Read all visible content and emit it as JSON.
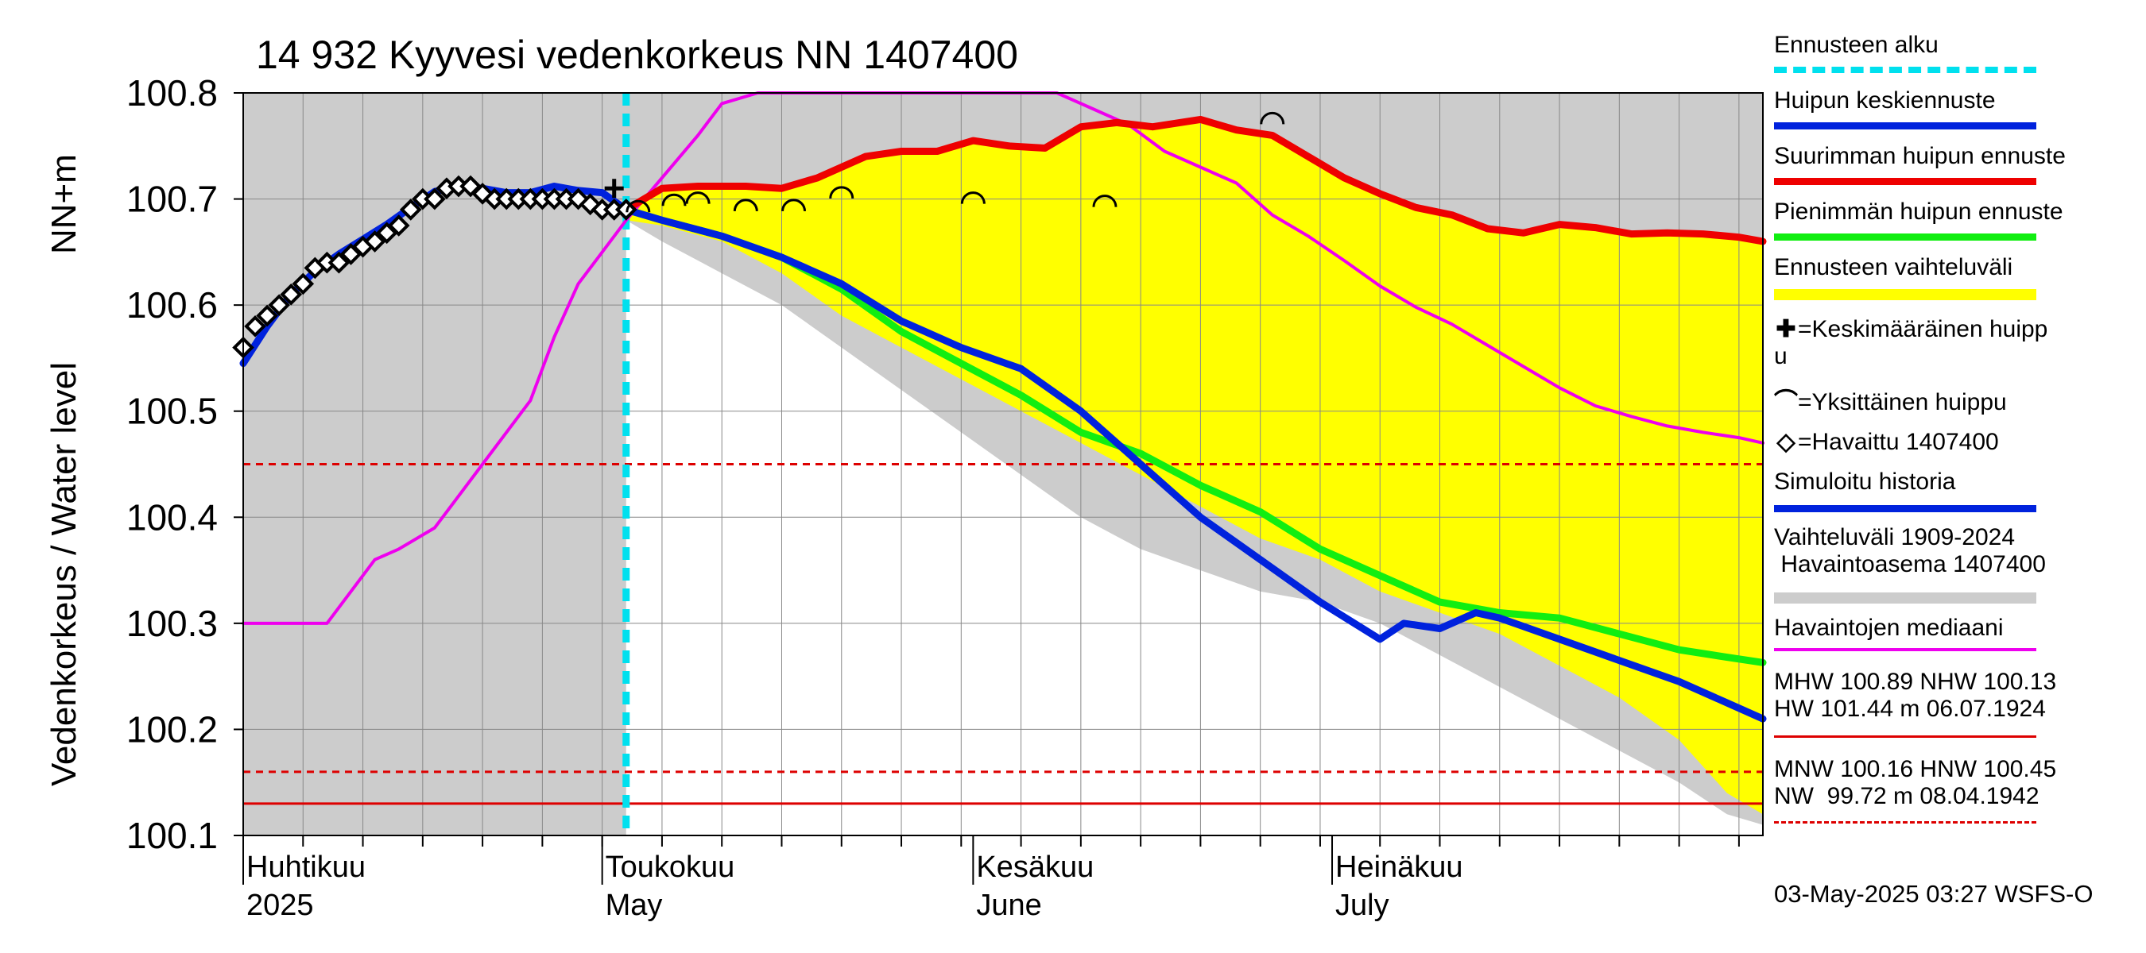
{
  "chart_data": {
    "type": "line",
    "title": "14 932 Kyyvesi vedenkorkeus NN 1407400",
    "ylabel": "Vedenkorkeus / Water level",
    "yunit": "NN+m",
    "ylim": [
      100.1,
      100.8
    ],
    "xlim_days": [
      0,
      127
    ],
    "y_ticks": [
      "100.1",
      "100.2",
      "100.3",
      "100.4",
      "100.5",
      "100.6",
      "100.7",
      "100.8"
    ],
    "x_note": "x values are days since 2025-03-27",
    "month_labels": [
      {
        "fi": "Huhtikuu",
        "en": "2025",
        "day": 0
      },
      {
        "fi": "Toukokuu",
        "en": "May",
        "day": 30
      },
      {
        "fi": "Kesäkuu",
        "en": "June",
        "day": 61
      },
      {
        "fi": "Heinäkuu",
        "en": "July",
        "day": 91
      }
    ],
    "forecast_start_day": 32,
    "reference_lines": [
      {
        "name": "HNW",
        "value": 100.45,
        "style": "dashed",
        "color": "#dd0000"
      },
      {
        "name": "MNW",
        "value": 100.16,
        "style": "dashed",
        "color": "#dd0000"
      },
      {
        "name": "low-solid",
        "value": 100.13,
        "style": "solid",
        "color": "#dd0000"
      }
    ],
    "historical_range_lower": {
      "x": [
        32,
        35,
        40,
        45,
        50,
        55,
        60,
        65,
        70,
        75,
        80,
        85,
        90,
        95,
        100,
        105,
        110,
        115,
        120,
        124,
        127
      ],
      "y": [
        100.68,
        100.66,
        100.63,
        100.6,
        100.56,
        100.52,
        100.48,
        100.44,
        100.4,
        100.37,
        100.35,
        100.33,
        100.32,
        100.3,
        100.27,
        100.24,
        100.21,
        100.18,
        100.15,
        100.12,
        100.11
      ]
    },
    "forecast_range_lower": {
      "x": [
        32,
        35,
        40,
        45,
        50,
        55,
        60,
        65,
        70,
        75,
        80,
        85,
        90,
        95,
        100,
        105,
        110,
        115,
        120,
        124,
        127
      ],
      "y": [
        100.68,
        100.675,
        100.66,
        100.63,
        100.59,
        100.56,
        100.53,
        100.5,
        100.47,
        100.44,
        100.41,
        100.38,
        100.36,
        100.33,
        100.31,
        100.29,
        100.26,
        100.23,
        100.19,
        100.14,
        100.12
      ]
    },
    "series": [
      {
        "name": "Suurimman huipun ennuste",
        "color": "#ee0000",
        "x": [
          32,
          35,
          38,
          42,
          45,
          48,
          52,
          55,
          58,
          61,
          64,
          67,
          70,
          73,
          76,
          80,
          83,
          86,
          89,
          92,
          95,
          98,
          101,
          104,
          107,
          110,
          113,
          116,
          119,
          122,
          125,
          127
        ],
        "y": [
          100.69,
          100.71,
          100.712,
          100.712,
          100.71,
          100.72,
          100.74,
          100.745,
          100.745,
          100.755,
          100.75,
          100.748,
          100.768,
          100.772,
          100.768,
          100.775,
          100.765,
          100.76,
          100.74,
          100.72,
          100.705,
          100.692,
          100.685,
          100.672,
          100.668,
          100.676,
          100.673,
          100.667,
          100.668,
          100.667,
          100.664,
          100.66
        ]
      },
      {
        "name": "Huipun keskiennuste",
        "color": "#0022dd",
        "x": [
          0,
          2,
          4,
          6,
          8,
          10,
          12,
          14,
          16,
          18,
          20,
          22,
          24,
          26,
          28,
          30,
          32,
          35,
          40,
          45,
          50,
          55,
          60,
          65,
          70,
          75,
          80,
          85,
          90,
          95,
          97,
          100,
          103,
          105,
          110,
          115,
          120,
          124,
          127
        ],
        "y": [
          100.545,
          100.58,
          100.61,
          100.632,
          100.648,
          100.662,
          100.676,
          100.692,
          100.707,
          100.712,
          100.71,
          100.706,
          100.706,
          100.712,
          100.708,
          100.706,
          100.69,
          100.68,
          100.665,
          100.645,
          100.62,
          100.585,
          100.56,
          100.54,
          100.5,
          100.45,
          100.4,
          100.36,
          100.32,
          100.285,
          100.3,
          100.295,
          100.31,
          100.305,
          100.285,
          100.265,
          100.245,
          100.225,
          100.21
        ]
      },
      {
        "name": "Pienimmän huipun ennuste",
        "color": "#11ee11",
        "x": [
          32,
          35,
          40,
          45,
          50,
          55,
          60,
          65,
          70,
          75,
          80,
          85,
          90,
          95,
          100,
          105,
          110,
          115,
          120,
          124,
          127
        ],
        "y": [
          100.69,
          100.68,
          100.665,
          100.645,
          100.615,
          100.575,
          100.545,
          100.515,
          100.48,
          100.46,
          100.43,
          100.405,
          100.37,
          100.345,
          100.32,
          100.31,
          100.305,
          100.29,
          100.275,
          100.268,
          100.263
        ]
      },
      {
        "name": "Havaintojen mediaani",
        "color": "#ee00ee",
        "x": [
          0,
          3,
          5,
          7,
          9,
          11,
          13,
          16,
          18,
          20,
          22,
          24,
          26,
          28,
          30,
          32,
          35,
          38,
          40,
          43,
          68,
          71,
          74,
          77,
          80,
          83,
          86,
          89,
          92,
          95,
          98,
          101,
          104,
          107,
          110,
          113,
          116,
          119,
          122,
          125,
          127
        ],
        "y": [
          100.3,
          100.3,
          100.3,
          100.3,
          100.33,
          100.36,
          100.37,
          100.39,
          100.42,
          100.45,
          100.48,
          100.51,
          100.57,
          100.62,
          100.65,
          100.68,
          100.72,
          100.76,
          100.79,
          100.82,
          100.8,
          100.785,
          100.77,
          100.745,
          100.73,
          100.715,
          100.685,
          100.665,
          100.642,
          100.618,
          100.598,
          100.582,
          100.562,
          100.542,
          100.522,
          100.505,
          100.495,
          100.486,
          100.48,
          100.475,
          100.47
        ]
      }
    ],
    "observed": {
      "name": "Havaittu 1407400",
      "x": [
        0,
        1,
        2,
        3,
        4,
        5,
        6,
        7,
        8,
        9,
        10,
        11,
        12,
        13,
        14,
        15,
        16,
        17,
        18,
        19,
        20,
        21,
        22,
        23,
        24,
        25,
        26,
        27,
        28,
        29,
        30,
        31,
        32
      ],
      "y": [
        100.56,
        100.58,
        100.59,
        100.6,
        100.61,
        100.62,
        100.635,
        100.64,
        100.64,
        100.648,
        100.655,
        100.66,
        100.668,
        100.675,
        100.69,
        100.7,
        100.7,
        100.71,
        100.712,
        100.712,
        100.705,
        100.7,
        100.7,
        100.7,
        100.7,
        100.7,
        100.7,
        100.7,
        100.7,
        100.695,
        100.69,
        100.69,
        100.69
      ]
    },
    "mean_peak": {
      "x": 31,
      "y": 100.71
    },
    "individual_peaks": {
      "x": [
        33,
        36,
        38,
        42,
        46,
        50,
        61,
        72,
        86
      ],
      "y": [
        100.692,
        100.698,
        100.7,
        100.693,
        100.693,
        100.705,
        100.7,
        100.697,
        100.775
      ]
    }
  },
  "legend": {
    "items": [
      {
        "label": "Ennusteen alku",
        "color": "#00e0ee",
        "style": "dashed"
      },
      {
        "label": "Huipun keskiennuste",
        "color": "#0022dd",
        "style": "solid"
      },
      {
        "label": "Suurimman huipun ennuste",
        "color": "#ee0000",
        "style": "solid"
      },
      {
        "label": "Pienimmän huipun ennuste",
        "color": "#11ee11",
        "style": "solid"
      },
      {
        "label": "Ennusteen vaihteluväli",
        "color": "#ffff00",
        "style": "band"
      }
    ],
    "mean_peak_line1": "=Keskimääräinen huipp",
    "mean_peak_line2": "u",
    "single_peak": "=Yksittäinen huippu",
    "observed": "=Havaittu 1407400",
    "simulated": "Simuloitu historia",
    "simulated_color": "#0022dd",
    "range_line1": "Vaihteluväli 1909-2024",
    "range_line2": " Havaintoasema 1407400",
    "range_color": "#cccccc",
    "median": "Havaintojen mediaani",
    "median_color": "#ee00ee",
    "stats_line1": "MHW 100.89 NHW 100.13",
    "stats_line2": "HW 101.44 m 06.07.1924",
    "stats_line3": "MNW 100.16 HNW 100.45",
    "stats_line4": "NW  99.72 m 08.04.1942"
  },
  "footer": "03-May-2025 03:27 WSFS-O",
  "colors": {
    "plot_background": "#cccccc",
    "forecast_band": "#ffff00",
    "white_area": "#ffffff",
    "grid": "#888888"
  }
}
